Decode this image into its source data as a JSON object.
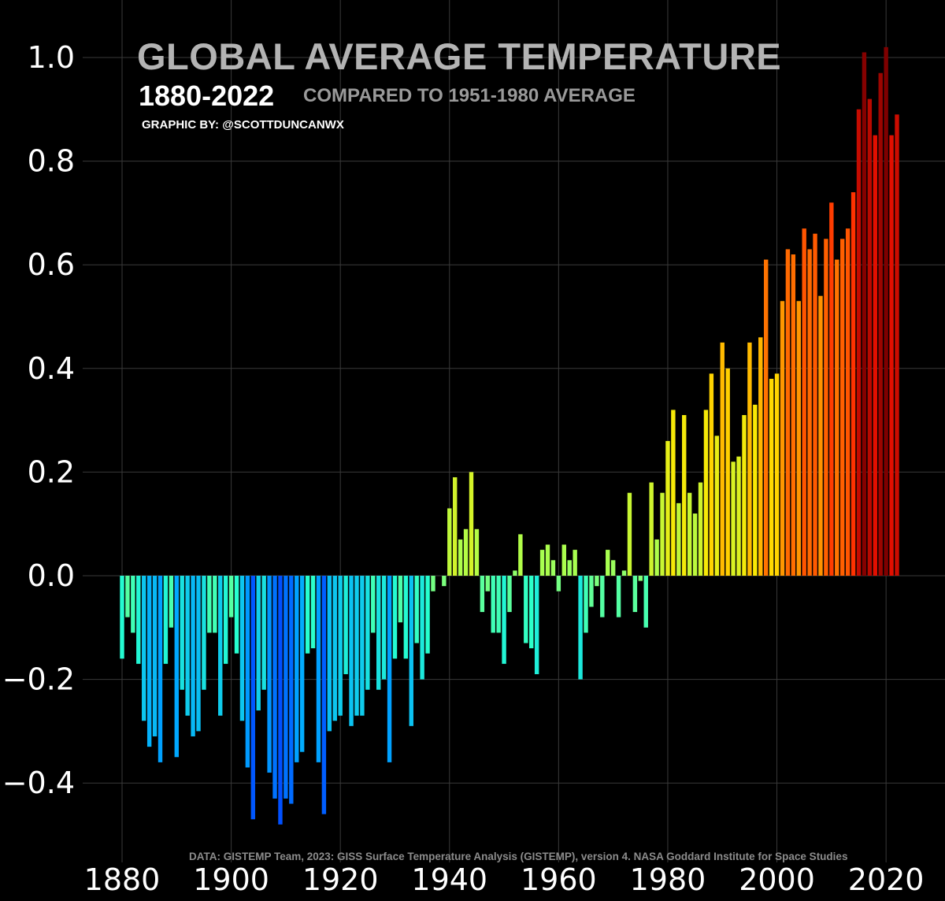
{
  "header": {
    "title": "GLOBAL AVERAGE TEMPERATURE",
    "years": "1880-2022",
    "subtitle": "COMPARED TO 1951-1980 AVERAGE",
    "credit": "GRAPHIC BY: @SCOTTDUNCANWX"
  },
  "footer": {
    "source": "DATA: GISTEMP Team, 2023: GISS Surface Temperature Analysis (GISTEMP), version 4. NASA Goddard Institute for Space Studies"
  },
  "chart_data": {
    "type": "bar",
    "title": "GLOBAL AVERAGE TEMPERATURE",
    "xlabel": "",
    "ylabel": "",
    "x_start": 1880,
    "x": [
      1880,
      1881,
      1882,
      1883,
      1884,
      1885,
      1886,
      1887,
      1888,
      1889,
      1890,
      1891,
      1892,
      1893,
      1894,
      1895,
      1896,
      1897,
      1898,
      1899,
      1900,
      1901,
      1902,
      1903,
      1904,
      1905,
      1906,
      1907,
      1908,
      1909,
      1910,
      1911,
      1912,
      1913,
      1914,
      1915,
      1916,
      1917,
      1918,
      1919,
      1920,
      1921,
      1922,
      1923,
      1924,
      1925,
      1926,
      1927,
      1928,
      1929,
      1930,
      1931,
      1932,
      1933,
      1934,
      1935,
      1936,
      1937,
      1938,
      1939,
      1940,
      1941,
      1942,
      1943,
      1944,
      1945,
      1946,
      1947,
      1948,
      1949,
      1950,
      1951,
      1952,
      1953,
      1954,
      1955,
      1956,
      1957,
      1958,
      1959,
      1960,
      1961,
      1962,
      1963,
      1964,
      1965,
      1966,
      1967,
      1968,
      1969,
      1970,
      1971,
      1972,
      1973,
      1974,
      1975,
      1976,
      1977,
      1978,
      1979,
      1980,
      1981,
      1982,
      1983,
      1984,
      1985,
      1986,
      1987,
      1988,
      1989,
      1990,
      1991,
      1992,
      1993,
      1994,
      1995,
      1996,
      1997,
      1998,
      1999,
      2000,
      2001,
      2002,
      2003,
      2004,
      2005,
      2006,
      2007,
      2008,
      2009,
      2010,
      2011,
      2012,
      2013,
      2014,
      2015,
      2016,
      2017,
      2018,
      2019,
      2020,
      2021,
      2022
    ],
    "values": [
      -0.16,
      -0.08,
      -0.11,
      -0.17,
      -0.28,
      -0.33,
      -0.31,
      -0.36,
      -0.17,
      -0.1,
      -0.35,
      -0.22,
      -0.27,
      -0.31,
      -0.3,
      -0.22,
      -0.11,
      -0.11,
      -0.27,
      -0.17,
      -0.08,
      -0.15,
      -0.28,
      -0.37,
      -0.47,
      -0.26,
      -0.22,
      -0.38,
      -0.43,
      -0.48,
      -0.43,
      -0.44,
      -0.36,
      -0.34,
      -0.15,
      -0.14,
      -0.36,
      -0.46,
      -0.3,
      -0.28,
      -0.27,
      -0.19,
      -0.29,
      -0.27,
      -0.27,
      -0.22,
      -0.11,
      -0.22,
      -0.2,
      -0.36,
      -0.16,
      -0.09,
      -0.16,
      -0.29,
      -0.13,
      -0.2,
      -0.15,
      -0.03,
      0.0,
      -0.02,
      0.13,
      0.19,
      0.07,
      0.09,
      0.2,
      0.09,
      -0.07,
      -0.03,
      -0.11,
      -0.11,
      -0.17,
      -0.07,
      0.01,
      0.08,
      -0.13,
      -0.14,
      -0.19,
      0.05,
      0.06,
      0.03,
      -0.03,
      0.06,
      0.03,
      0.05,
      -0.2,
      -0.11,
      -0.06,
      -0.02,
      -0.08,
      0.05,
      0.03,
      -0.08,
      0.01,
      0.16,
      -0.07,
      -0.01,
      -0.1,
      0.18,
      0.07,
      0.16,
      0.26,
      0.32,
      0.14,
      0.31,
      0.16,
      0.12,
      0.18,
      0.32,
      0.39,
      0.27,
      0.45,
      0.4,
      0.22,
      0.23,
      0.31,
      0.45,
      0.33,
      0.46,
      0.61,
      0.38,
      0.39,
      0.53,
      0.63,
      0.62,
      0.53,
      0.67,
      0.63,
      0.66,
      0.54,
      0.65,
      0.72,
      0.61,
      0.65,
      0.67,
      0.74,
      0.9,
      1.01,
      0.92,
      0.85,
      0.97,
      1.02,
      0.85,
      0.89
    ],
    "xlim": [
      1880,
      2022
    ],
    "ylim": [
      -0.55,
      1.08
    ],
    "x_ticks": [
      "1880",
      "1900",
      "1920",
      "1940",
      "1960",
      "1980",
      "2000",
      "2020"
    ],
    "y_ticks": [
      "1.0",
      "0.8",
      "0.6",
      "0.4",
      "0.2",
      "0.0",
      "−0.2",
      "−0.4"
    ],
    "grid": true,
    "legend": "none",
    "background": "#000000",
    "colormap": [
      "#7f0000",
      "#ff0000",
      "#ff8c00",
      "#ffe600",
      "#a8ff50",
      "#26ffd0",
      "#00a8ff",
      "#0050ff"
    ]
  }
}
